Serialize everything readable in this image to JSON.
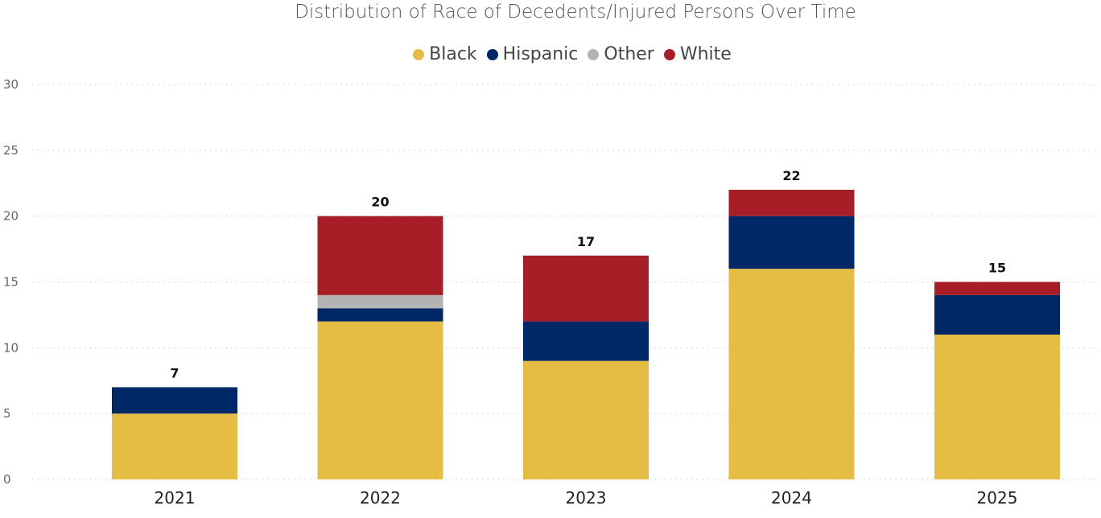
{
  "chart_data": {
    "type": "bar",
    "stacked": true,
    "title": "Distribution of Race of Decedents/Injured Persons Over Time",
    "categories": [
      "2021",
      "2022",
      "2023",
      "2024",
      "2025"
    ],
    "series": [
      {
        "name": "Black",
        "color": "#E5BD45",
        "values": [
          5,
          12,
          9,
          16,
          11
        ]
      },
      {
        "name": "Hispanic",
        "color": "#002766",
        "values": [
          2,
          1,
          3,
          4,
          3
        ]
      },
      {
        "name": "Other",
        "color": "#B3B3B3",
        "values": [
          0,
          1,
          0,
          0,
          0
        ]
      },
      {
        "name": "White",
        "color": "#A61F26",
        "values": [
          0,
          6,
          5,
          2,
          1
        ]
      }
    ],
    "totals": [
      "7",
      "20",
      "17",
      "22",
      "15"
    ],
    "yticks": [
      "0",
      "5",
      "10",
      "15",
      "20",
      "25",
      "30"
    ],
    "ylim": [
      0,
      30
    ],
    "xlabel": "",
    "ylabel": "",
    "legend_position": "top-center",
    "grid": true
  }
}
